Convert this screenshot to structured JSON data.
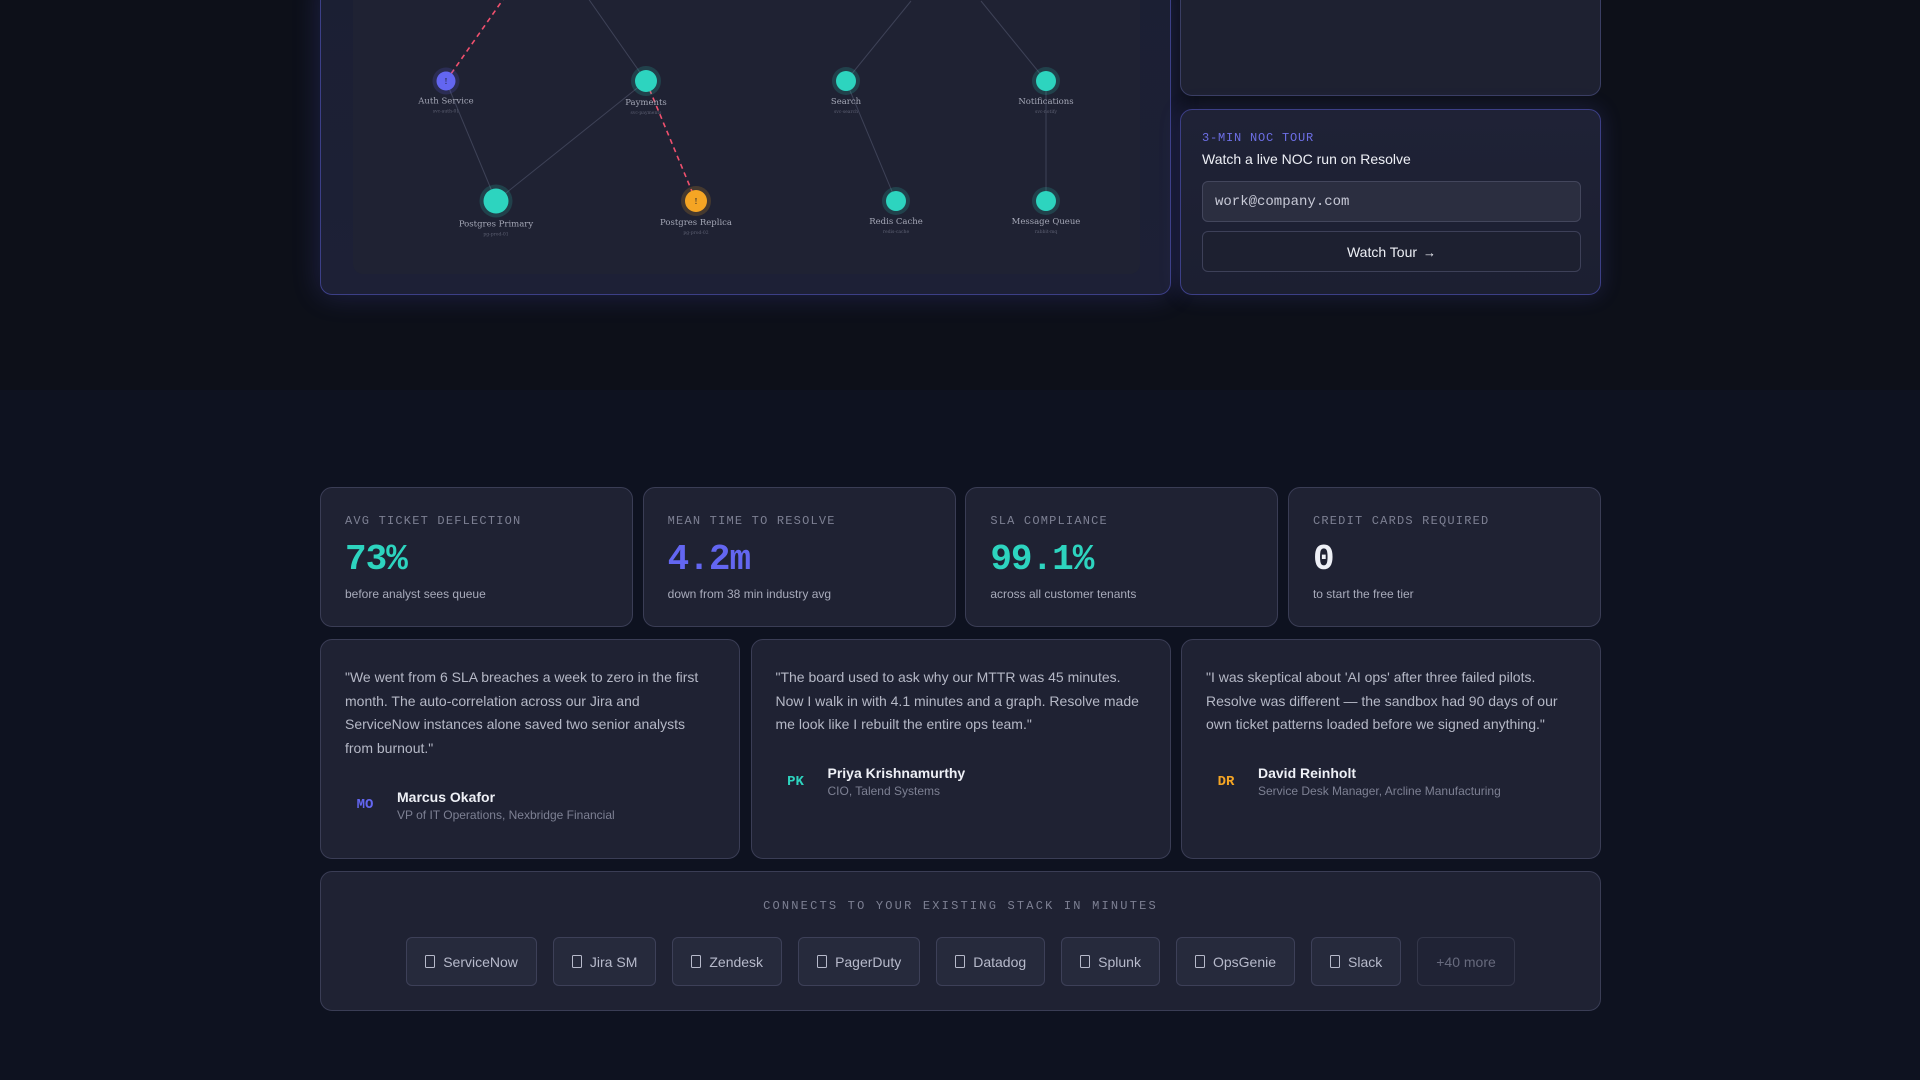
{
  "topology": {
    "nodes": [
      {
        "id": "auth",
        "label": "Auth Service",
        "sublabel": "svc-auth-01",
        "status": "incident",
        "badge": "!"
      },
      {
        "id": "payments",
        "label": "Payments",
        "sublabel": "svc-payments",
        "status": "healthy"
      },
      {
        "id": "search",
        "label": "Search",
        "sublabel": "svc-search",
        "status": "healthy"
      },
      {
        "id": "notifications",
        "label": "Notifications",
        "sublabel": "svc-notify",
        "status": "healthy"
      },
      {
        "id": "pg_primary",
        "label": "Postgres Primary",
        "sublabel": "pg-prod-01",
        "status": "healthy"
      },
      {
        "id": "pg_replica",
        "label": "Postgres Replica",
        "sublabel": "pg-prod-02",
        "status": "warning",
        "badge": "!"
      },
      {
        "id": "redis",
        "label": "Redis Cache",
        "sublabel": "redis-cache",
        "status": "healthy"
      },
      {
        "id": "mq",
        "label": "Message Queue",
        "sublabel": "rabbit-mq",
        "status": "healthy"
      }
    ]
  },
  "tour": {
    "kicker": "3-MIN NOC TOUR",
    "title": "Watch a live NOC run on Resolve",
    "email_value": "work@company.com",
    "button_label": "Watch Tour",
    "button_arrow": "→"
  },
  "stats": [
    {
      "label": "AVG TICKET DEFLECTION",
      "value": "73%",
      "sub": "before analyst sees queue",
      "color": "#2dd4bf"
    },
    {
      "label": "MEAN TIME TO RESOLVE",
      "value": "4.2m",
      "sub": "down from 38 min industry avg",
      "color": "#6366f1"
    },
    {
      "label": "SLA COMPLIANCE",
      "value": "99.1%",
      "sub": "across all customer tenants",
      "color": "#2dd4bf"
    },
    {
      "label": "CREDIT CARDS REQUIRED",
      "value": "0",
      "sub": "to start the free tier",
      "color": "#eef0f6"
    }
  ],
  "testimonials": [
    {
      "quote": "\"We went from 6 SLA breaches a week to zero in the first month. The auto-correlation across our Jira and ServiceNow instances alone saved two senior analysts from burnout.\"",
      "initials": "MO",
      "name": "Marcus Okafor",
      "role": "VP of IT Operations, Nexbridge Financial",
      "initials_color": "#6366f1"
    },
    {
      "quote": "\"The board used to ask why our MTTR was 45 minutes. Now I walk in with 4.1 minutes and a graph. Resolve made me look like I rebuilt the entire ops team.\"",
      "initials": "PK",
      "name": "Priya Krishnamurthy",
      "role": "CIO, Talend Systems",
      "initials_color": "#2dd4bf"
    },
    {
      "quote": "\"I was skeptical about 'AI ops' after three failed pilots. Resolve was different — the sandbox had 90 days of our own ticket patterns loaded before we signed anything.\"",
      "initials": "DR",
      "name": "David Reinholt",
      "role": "Service Desk Manager, Arcline Manufacturing",
      "initials_color": "#f5a524"
    }
  ],
  "integrations": {
    "label": "CONNECTS TO YOUR EXISTING STACK IN MINUTES",
    "items": [
      "ServiceNow",
      "Jira SM",
      "Zendesk",
      "PagerDuty",
      "Datadog",
      "Splunk",
      "OpsGenie",
      "Slack"
    ],
    "more": "+40 more",
    "icon": "document-icon"
  },
  "colors": {
    "accent_indigo": "#6366f1",
    "accent_teal": "#2dd4bf",
    "warning_amber": "#f5a524",
    "incident_link": "#f0506e"
  }
}
